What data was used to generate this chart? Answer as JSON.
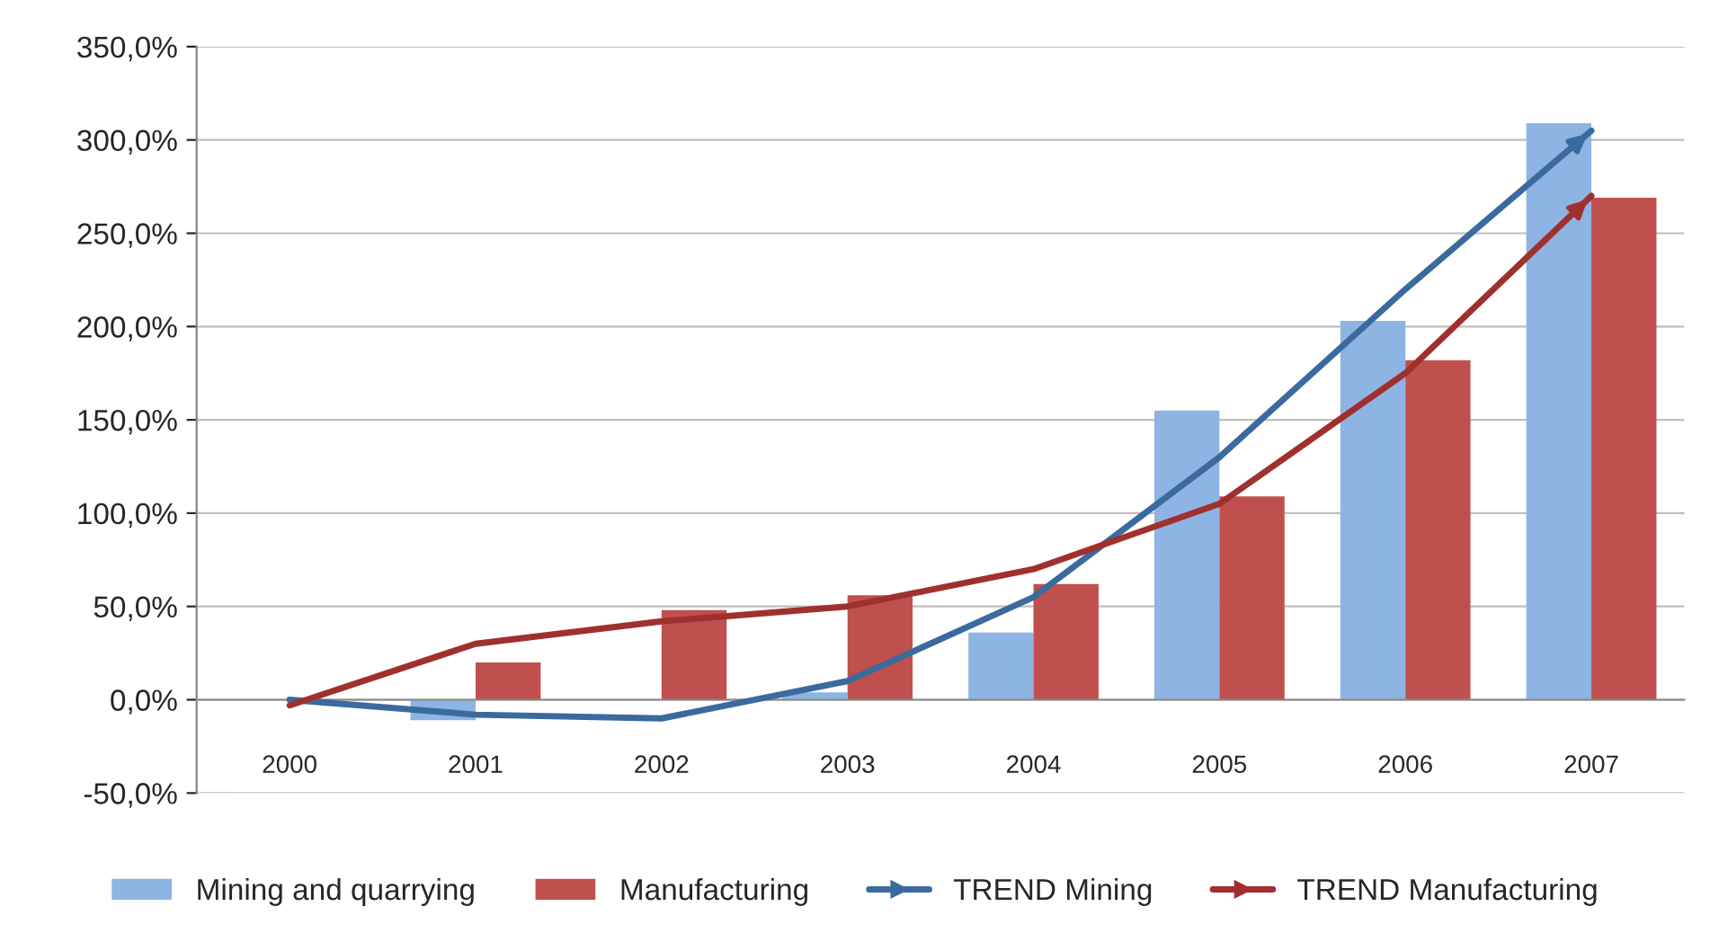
{
  "chart_data": {
    "type": "bar",
    "categories": [
      "2000",
      "2001",
      "2002",
      "2003",
      "2004",
      "2005",
      "2006",
      "2007"
    ],
    "series": [
      {
        "name": "Mining and quarrying",
        "color": "#8db4e2",
        "values": [
          0,
          -11,
          null,
          4,
          36,
          155,
          203,
          309
        ]
      },
      {
        "name": "Manufacturing",
        "color": "#c0504d",
        "values": [
          0,
          20,
          48,
          56,
          62,
          109,
          182,
          269
        ]
      },
      {
        "name": "TREND Mining",
        "type": "line",
        "color": "#3a6a9e",
        "values": [
          0,
          -8,
          -10,
          10,
          55,
          130,
          220,
          305
        ]
      },
      {
        "name": "TREND Manufacturing",
        "type": "line",
        "color": "#a0302e",
        "values": [
          -3,
          30,
          42,
          50,
          70,
          105,
          175,
          270
        ]
      }
    ],
    "ylim": [
      -50,
      350
    ],
    "yticks": [
      {
        "value": -50,
        "label": "-50,0%"
      },
      {
        "value": 0,
        "label": "0,0%"
      },
      {
        "value": 50,
        "label": "50,0%"
      },
      {
        "value": 100,
        "label": "100,0%"
      },
      {
        "value": 150,
        "label": "150,0%"
      },
      {
        "value": 200,
        "label": "200,0%"
      },
      {
        "value": 250,
        "label": "250,0%"
      },
      {
        "value": 300,
        "label": "300,0%"
      },
      {
        "value": 350,
        "label": "350,0%"
      }
    ],
    "grid": "y",
    "legend": "bottom"
  }
}
